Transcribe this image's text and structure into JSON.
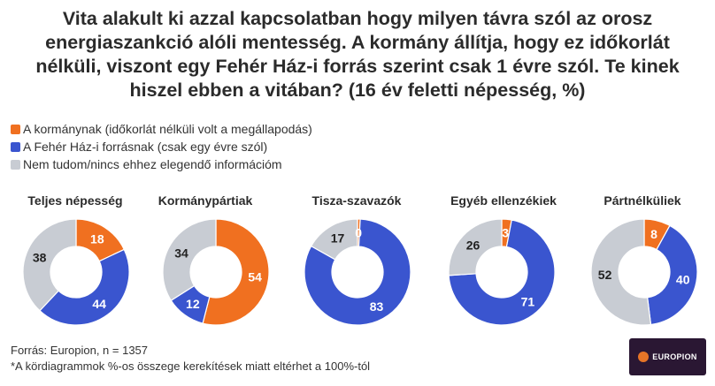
{
  "title": "Vita alakult ki azzal kapcsolatban hogy milyen távra szól az orosz energiaszankció alóli mentesség. A kormány állítja, hogy ez időkorlát nélküli, viszont egy Fehér Ház-i forrás szerint csak 1 évre szól. Te kinek hiszel ebben a vitában? (16 év feletti népesség, %)",
  "legend": [
    {
      "label": "A kormánynak (időkorlát nélküli volt a megállapodás)",
      "color": "#f07020"
    },
    {
      "label": "A Fehér Ház-i forrásnak (csak egy évre szól)",
      "color": "#3a55cf"
    },
    {
      "label": "Nem tudom/nincs ehhez elegendő információm",
      "color": "#c8ccd3"
    }
  ],
  "chart_data": {
    "type": "pie",
    "title": "Vita alakult ki azzal kapcsolatban hogy milyen távra szól az orosz energiaszankció alóli mentesség. A kormány állítja, hogy ez időkorlát nélküli, viszont egy Fehér Ház-i forrás szerint csak 1 évre szól. Te kinek hiszel ebben a vitában? (16 év feletti népesség, %)",
    "series_names": [
      "A kormánynak (időkorlát nélküli volt a megállapodás)",
      "A Fehér Ház-i forrásnak (csak egy évre szól)",
      "Nem tudom/nincs ehhez elegendő információm"
    ],
    "colors": [
      "#f07020",
      "#3a55cf",
      "#c8ccd3"
    ],
    "charts": [
      {
        "label": "Teljes népesség",
        "values": [
          18,
          44,
          38
        ]
      },
      {
        "label": "Kormánypártiak",
        "values": [
          54,
          12,
          34
        ]
      },
      {
        "label": "Tisza-szavazók",
        "values": [
          0,
          83,
          17
        ]
      },
      {
        "label": "Egyéb ellenzékiek",
        "values": [
          3,
          71,
          26
        ]
      },
      {
        "label": "Pártnélküliek",
        "values": [
          8,
          40,
          52
        ]
      }
    ]
  },
  "source": "Forrás: Europion, n = 1357",
  "footnote": "*A kördiagrammok %-os összege kerekítések miatt eltérhet a 100%-tól",
  "logo_text": "EUROPION"
}
